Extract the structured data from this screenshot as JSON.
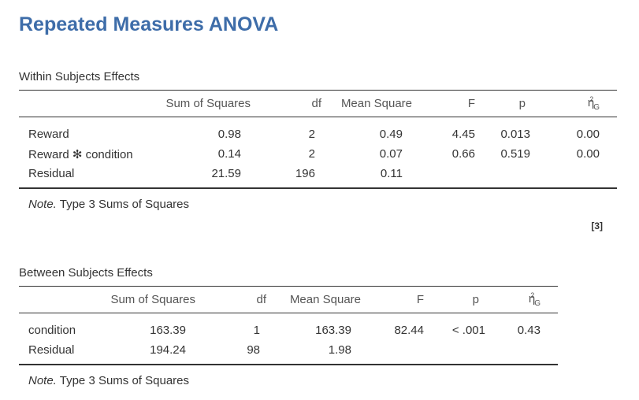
{
  "title": "Repeated Measures ANOVA",
  "within": {
    "title": "Within Subjects Effects",
    "headers": [
      "",
      "Sum of Squares",
      "df",
      "Mean Square",
      "F",
      "p",
      "η²G"
    ],
    "eta_main": "η",
    "eta_sup": "2",
    "eta_sub": "G",
    "rows": [
      {
        "label": "Reward",
        "ss": "0.98",
        "df": "2",
        "ms": "0.49",
        "f": "4.45",
        "p": "0.013",
        "eta": "0.00"
      },
      {
        "label": "Reward ✻ condition",
        "ss": "0.14",
        "df": "2",
        "ms": "0.07",
        "f": "0.66",
        "p": "0.519",
        "eta": "0.00"
      },
      {
        "label": "Residual",
        "ss": "21.59",
        "df": "196",
        "ms": "0.11",
        "f": "",
        "p": "",
        "eta": ""
      }
    ],
    "note_label": "Note.",
    "note_text": " Type 3 Sums of Squares"
  },
  "ref": "[3]",
  "between": {
    "title": "Between Subjects Effects",
    "headers": [
      "",
      "Sum of Squares",
      "df",
      "Mean Square",
      "F",
      "p",
      "η²G"
    ],
    "rows": [
      {
        "label": "condition",
        "ss": "163.39",
        "df": "1",
        "ms": "163.39",
        "f": "82.44",
        "p": "< .001",
        "eta": "0.43"
      },
      {
        "label": "Residual",
        "ss": "194.24",
        "df": "98",
        "ms": "1.98",
        "f": "",
        "p": "",
        "eta": ""
      }
    ],
    "note_label": "Note.",
    "note_text": " Type 3 Sums of Squares"
  }
}
